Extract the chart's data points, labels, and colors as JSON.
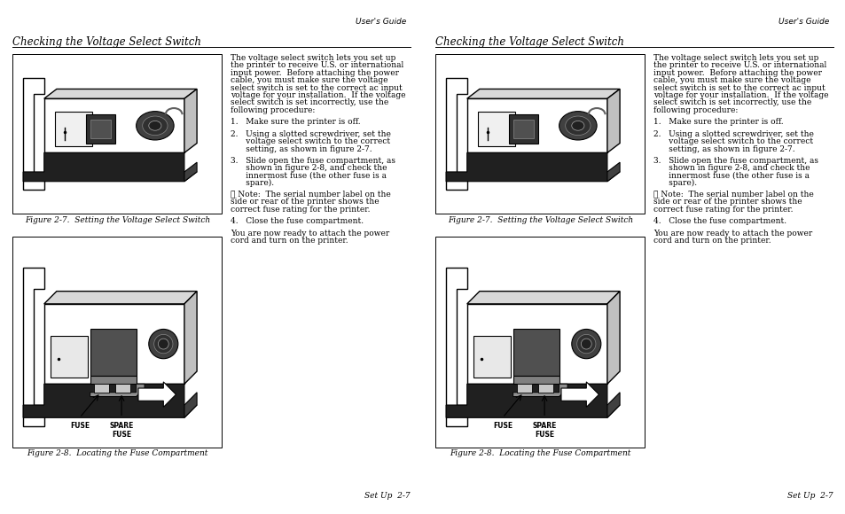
{
  "bg_color": "#ffffff",
  "page_width": 9.54,
  "page_height": 5.8,
  "header_text": "User's Guide",
  "section_title": "Checking the Voltage Select Switch",
  "fig7_caption": "Figure 2-7.  Setting the Voltage Select Switch",
  "fig8_caption": "Figure 2-8.  Locating the Fuse Compartment",
  "footer_text": "Set Up  2-7",
  "body_text_lines": [
    "The voltage select switch lets you set up",
    "the printer to receive U.S. or international",
    "input power.  Before attaching the power",
    "cable, you must make sure the voltage",
    "select switch is set to the correct ac input",
    "voltage for your installation.  If the voltage",
    "select switch is set incorrectly, use the",
    "following procedure:"
  ],
  "step1_line1": "1.   Make sure the printer is off.",
  "step2_lines": [
    "2.   Using a slotted screwdriver, set the",
    "      voltage select switch to the correct",
    "      setting, as shown in figure 2-7."
  ],
  "step3_lines": [
    "3.   Slide open the fuse compartment, as",
    "      shown in figure 2-8, and check the",
    "      innermost fuse (the other fuse is a",
    "      spare)."
  ],
  "note_lines": [
    "☞ Note:  The serial number label on the",
    "side or rear of the printer shows the",
    "correct fuse rating for the printer."
  ],
  "step4_line": "4.   Close the fuse compartment.",
  "closing_lines": [
    "You are now ready to attach the power",
    "cord and turn on the printer."
  ],
  "fuse_label": "FUSE",
  "spare_fuse_label1": "SPARE",
  "spare_fuse_label2": "FUSE",
  "title_fontsize": 8.5,
  "body_fontsize": 6.5,
  "header_fontsize": 6.5,
  "footer_fontsize": 6.5,
  "caption_fontsize": 6.5,
  "note_bold": "Note:"
}
